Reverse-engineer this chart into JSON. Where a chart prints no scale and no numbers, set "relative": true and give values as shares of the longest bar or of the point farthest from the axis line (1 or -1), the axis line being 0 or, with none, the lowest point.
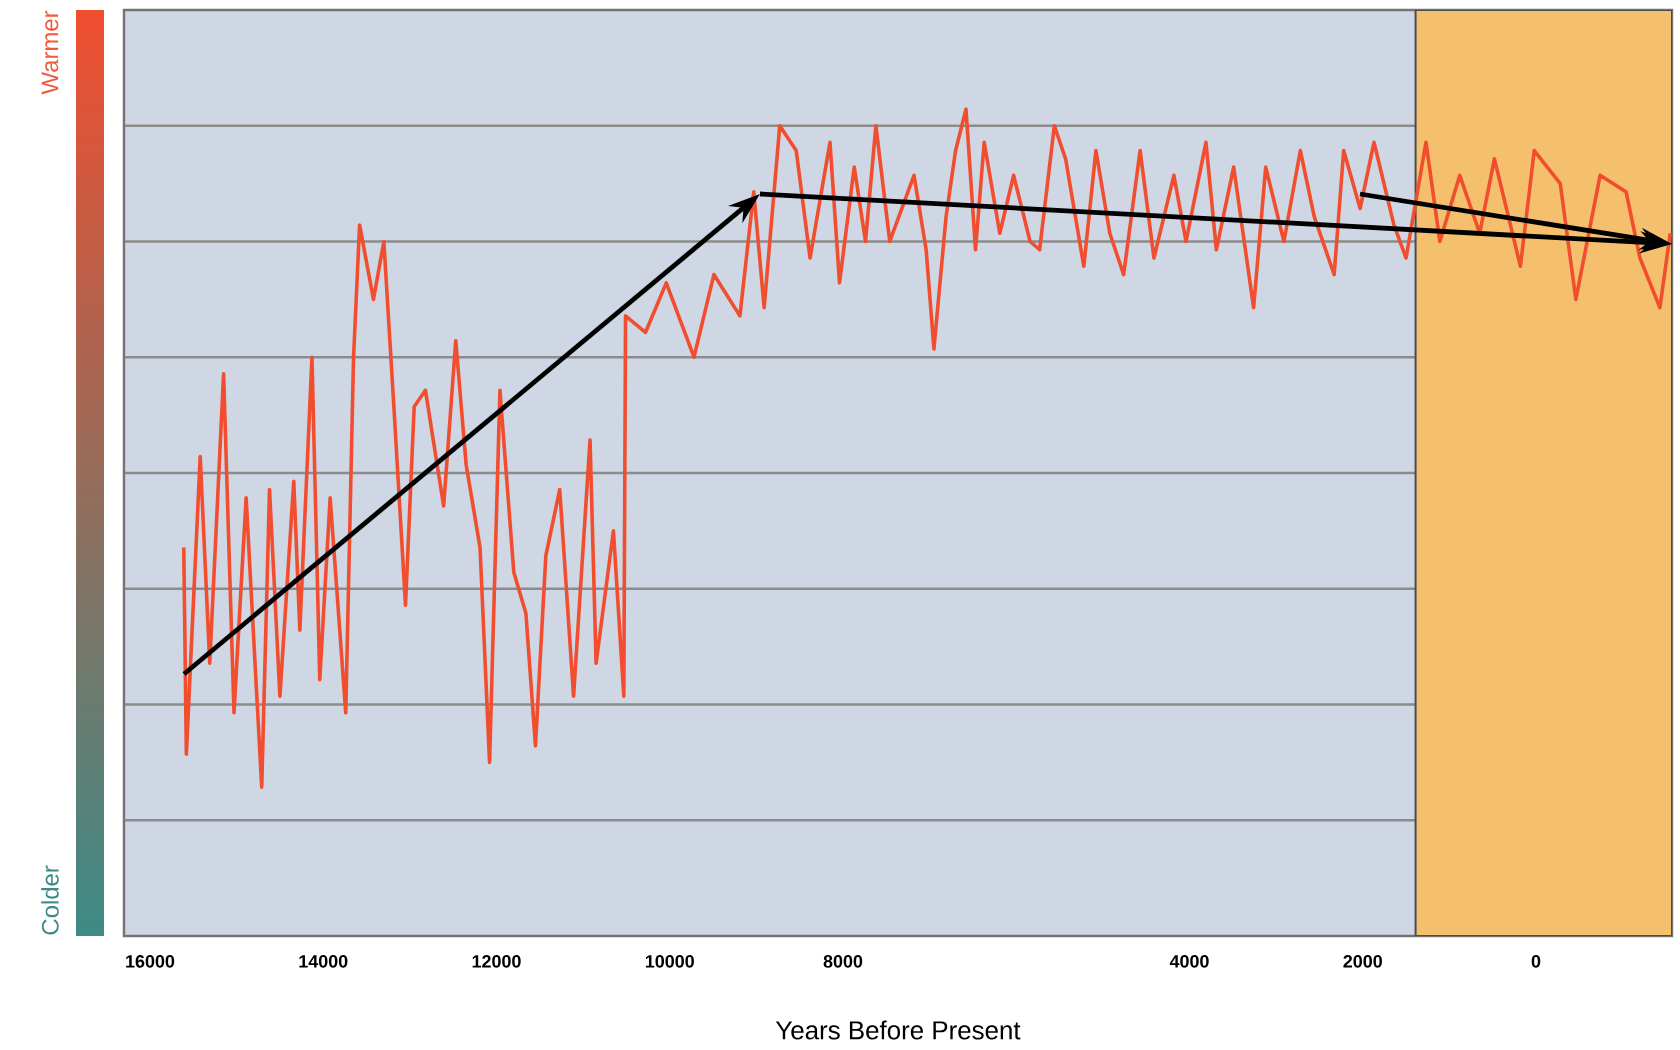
{
  "chart_data": {
    "type": "line",
    "relative": true,
    "grid": "y",
    "xlabel": "Years Before Present",
    "annotations": [
      "Warmer",
      "Colder"
    ],
    "xlim": [
      16300,
      -1570
    ],
    "xticks": [
      16000,
      14000,
      12000,
      10000,
      8000,
      4000,
      2000,
      0
    ],
    "bands": [
      {
        "axis": "x",
        "from": 1390,
        "to": -1570,
        "color": "#f5c06e"
      }
    ],
    "x": [
      15610,
      15580,
      15420,
      15310,
      15150,
      15030,
      14890,
      14710,
      14620,
      14500,
      14340,
      14270,
      14130,
      14040,
      13920,
      13740,
      13650,
      13580,
      13420,
      13300,
      13190,
      13050,
      12950,
      12820,
      12610,
      12470,
      12350,
      12190,
      12080,
      11960,
      11800,
      11660,
      11550,
      11430,
      11270,
      11110,
      10920,
      10850,
      10650,
      10530,
      10510,
      10280,
      10040,
      9720,
      9490,
      9190,
      9030,
      8910,
      8730,
      8540,
      8380,
      8150,
      8040,
      7870,
      7740,
      7620,
      7460,
      7180,
      7040,
      6950,
      6810,
      6700,
      6580,
      6470,
      6370,
      6190,
      6030,
      5840,
      5730,
      5560,
      5430,
      5220,
      5080,
      4920,
      4760,
      4570,
      4410,
      4180,
      4040,
      3810,
      3690,
      3490,
      3260,
      3120,
      2910,
      2720,
      2560,
      2330,
      2220,
      2030,
      1870,
      1640,
      1500,
      1270,
      1110,
      880,
      650,
      480,
      180,
      20,
      -280,
      -460,
      -740,
      -1040,
      -1200,
      -1430,
      -1550
    ],
    "series": [
      {
        "color": "#f04e2f",
        "values": [
          0.47,
          0.22,
          0.58,
          0.33,
          0.68,
          0.27,
          0.53,
          0.18,
          0.54,
          0.29,
          0.55,
          0.37,
          0.7,
          0.31,
          0.53,
          0.27,
          0.7,
          0.86,
          0.77,
          0.84,
          0.65,
          0.4,
          0.64,
          0.66,
          0.52,
          0.72,
          0.57,
          0.47,
          0.21,
          0.66,
          0.44,
          0.39,
          0.23,
          0.46,
          0.54,
          0.29,
          0.6,
          0.33,
          0.49,
          0.29,
          0.75,
          0.73,
          0.79,
          0.7,
          0.8,
          0.75,
          0.9,
          0.76,
          0.98,
          0.95,
          0.82,
          0.96,
          0.79,
          0.93,
          0.84,
          0.98,
          0.84,
          0.92,
          0.83,
          0.71,
          0.87,
          0.95,
          1.0,
          0.83,
          0.96,
          0.85,
          0.92,
          0.84,
          0.83,
          0.98,
          0.94,
          0.81,
          0.95,
          0.85,
          0.8,
          0.95,
          0.82,
          0.92,
          0.84,
          0.96,
          0.83,
          0.93,
          0.76,
          0.93,
          0.84,
          0.95,
          0.87,
          0.8,
          0.95,
          0.88,
          0.96,
          0.86,
          0.82,
          0.96,
          0.84,
          0.92,
          0.85,
          0.94,
          0.81,
          0.95,
          0.91,
          0.77,
          0.92,
          0.9,
          0.82,
          0.76,
          0.85
        ]
      }
    ]
  }
}
